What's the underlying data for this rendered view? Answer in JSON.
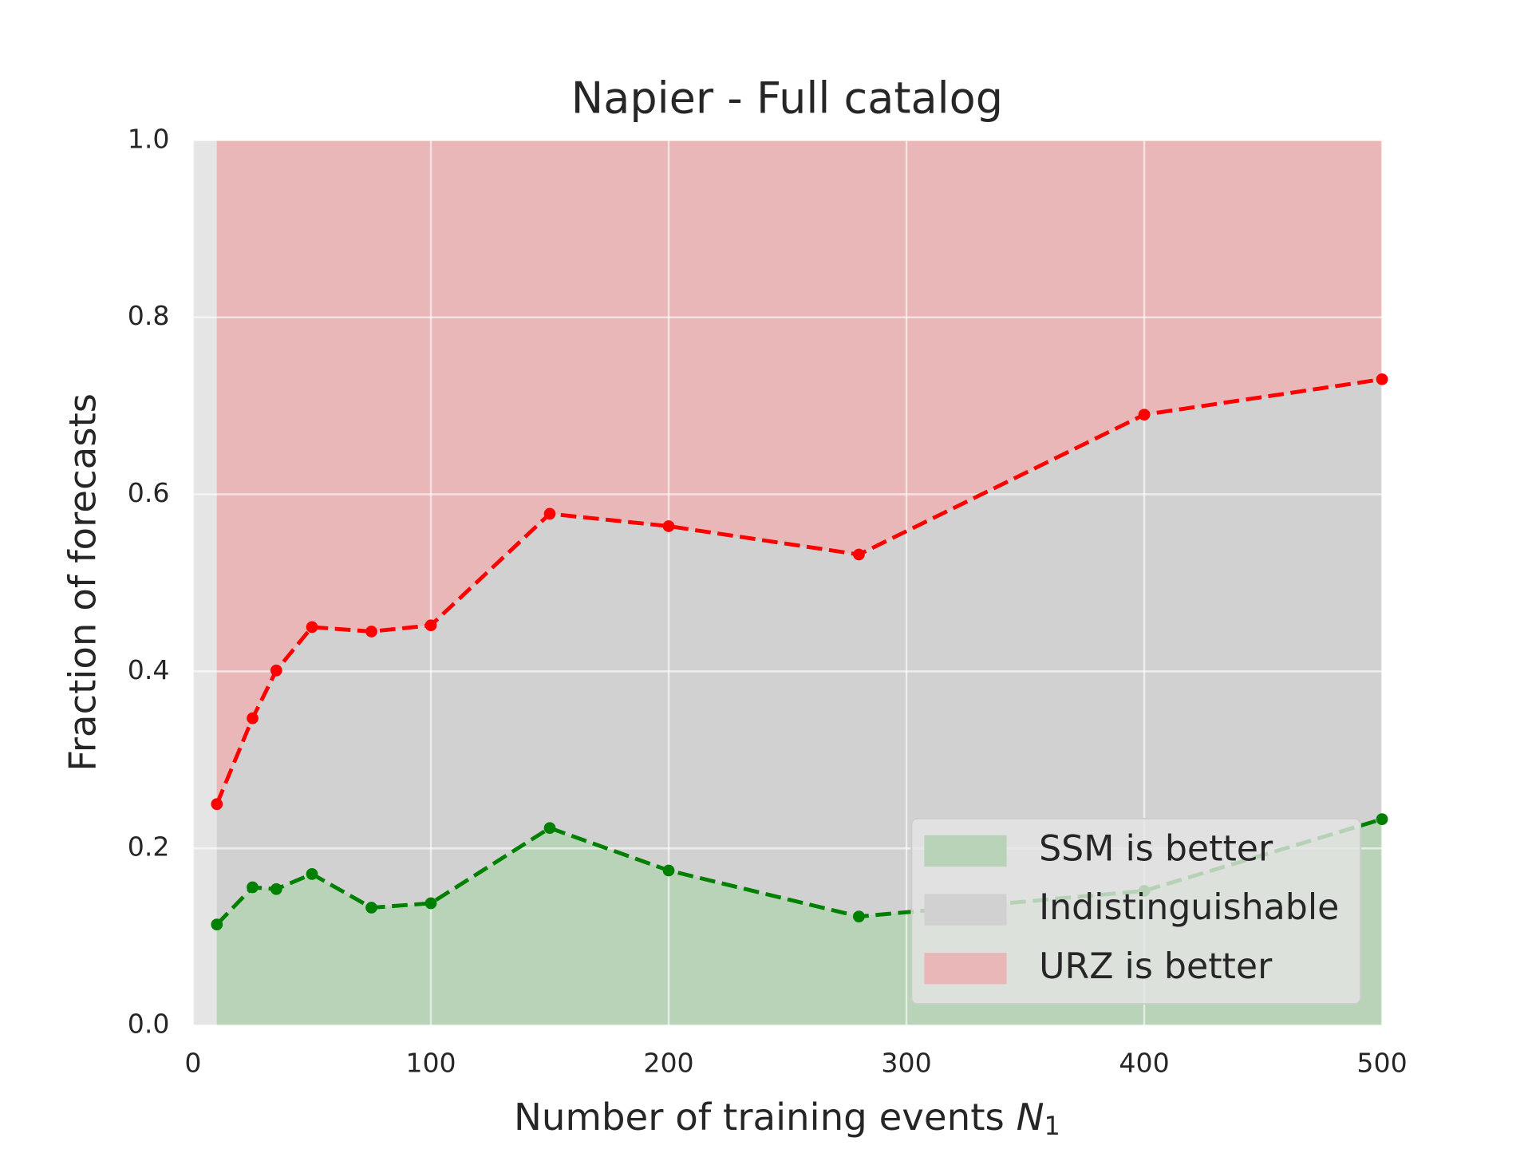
{
  "chart_data": {
    "type": "line",
    "title": "Napier - Full catalog",
    "xlabel": {
      "text": "Number of training events ",
      "var": "N",
      "sub": "1"
    },
    "ylabel": "Fraction of forecasts",
    "x": [
      10,
      25,
      35,
      50,
      75,
      100,
      150,
      200,
      280,
      400,
      500
    ],
    "series": [
      {
        "color": "#008000",
        "fill": "#b9d3b9",
        "values": [
          0.114,
          0.156,
          0.154,
          0.171,
          0.133,
          0.138,
          0.223,
          0.175,
          0.123,
          0.152,
          0.233
        ]
      },
      {
        "color": "#ff0000",
        "fill": "#eab7b8",
        "values": [
          0.25,
          0.347,
          0.401,
          0.45,
          0.445,
          0.452,
          0.578,
          0.564,
          0.532,
          0.69,
          0.73
        ]
      }
    ],
    "between_fill": "#d1d1d1",
    "xlim": [
      0,
      500
    ],
    "ylim": [
      0,
      1
    ],
    "xticks": [
      0,
      100,
      200,
      300,
      400,
      500
    ],
    "yticks": [
      {
        "value": 0,
        "label": "0.0"
      },
      0.2,
      0.4,
      0.6,
      0.8,
      {
        "value": 1,
        "label": "1.0"
      }
    ],
    "grid": true,
    "legend": {
      "position": "lower right",
      "entries": [
        {
          "label": "SSM is better",
          "color": "#b9d3b9"
        },
        {
          "label": "Indistinguishable",
          "color": "#d1d1d1"
        },
        {
          "label": "URZ is better",
          "color": "#eab7b8"
        }
      ]
    }
  }
}
